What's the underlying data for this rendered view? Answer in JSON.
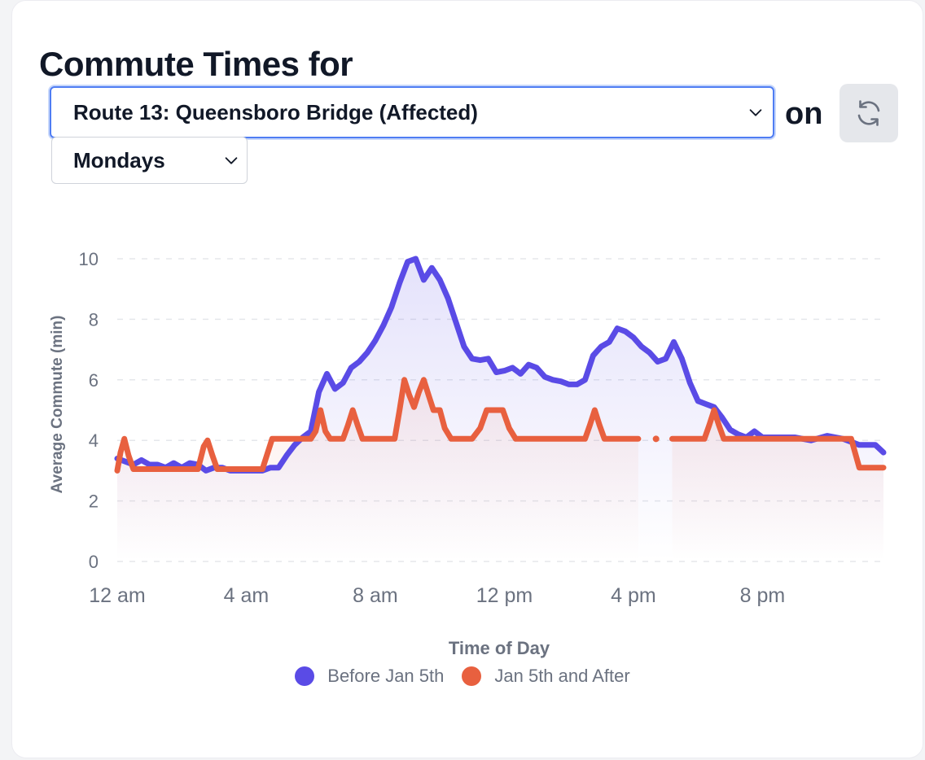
{
  "header": {
    "title": "Commute Times for",
    "route_selected": "Route 13: Queensboro Bridge (Affected)",
    "connector": "on",
    "day_selected": "Mondays",
    "refresh_icon": "refresh-icon"
  },
  "colors": {
    "before": "#5a4be6",
    "after": "#e8603f",
    "focus": "#4f7df3",
    "text": "#111827",
    "muted": "#6b7280"
  },
  "chart_data": {
    "type": "line",
    "title": "",
    "xlabel": "Time of Day",
    "ylabel": "Average Commute (min)",
    "xlim": [
      0,
      23.75
    ],
    "ylim": [
      0,
      10
    ],
    "yticks": [
      0,
      2,
      4,
      6,
      8,
      10
    ],
    "xticks": [
      {
        "value": 0,
        "label": "12 am"
      },
      {
        "value": 4,
        "label": "4 am"
      },
      {
        "value": 8,
        "label": "8 am"
      },
      {
        "value": 12,
        "label": "12 pm"
      },
      {
        "value": 16,
        "label": "4 pm"
      },
      {
        "value": 20,
        "label": "8 pm"
      }
    ],
    "grid": true,
    "legend_position": "bottom-center",
    "series": [
      {
        "name": "Before Jan 5th",
        "color": "#5a4be6",
        "points": [
          [
            0,
            3.4
          ],
          [
            0.25,
            3.3
          ],
          [
            0.5,
            3.2
          ],
          [
            0.75,
            3.35
          ],
          [
            1.0,
            3.2
          ],
          [
            1.25,
            3.2
          ],
          [
            1.5,
            3.1
          ],
          [
            1.75,
            3.25
          ],
          [
            2.0,
            3.1
          ],
          [
            2.25,
            3.25
          ],
          [
            2.5,
            3.2
          ],
          [
            2.75,
            3.0
          ],
          [
            3.0,
            3.1
          ],
          [
            3.25,
            3.1
          ],
          [
            3.5,
            3.0
          ],
          [
            4.0,
            3.0
          ],
          [
            4.5,
            3.0
          ],
          [
            4.75,
            3.1
          ],
          [
            5.0,
            3.1
          ],
          [
            5.25,
            3.5
          ],
          [
            5.5,
            3.85
          ],
          [
            5.75,
            4.1
          ],
          [
            6.0,
            4.3
          ],
          [
            6.25,
            5.6
          ],
          [
            6.5,
            6.2
          ],
          [
            6.75,
            5.7
          ],
          [
            7.0,
            5.9
          ],
          [
            7.25,
            6.4
          ],
          [
            7.5,
            6.6
          ],
          [
            7.75,
            6.9
          ],
          [
            8.0,
            7.3
          ],
          [
            8.25,
            7.8
          ],
          [
            8.5,
            8.4
          ],
          [
            8.75,
            9.2
          ],
          [
            9.0,
            9.9
          ],
          [
            9.25,
            10.0
          ],
          [
            9.5,
            9.3
          ],
          [
            9.75,
            9.7
          ],
          [
            10.0,
            9.3
          ],
          [
            10.25,
            8.7
          ],
          [
            10.5,
            7.9
          ],
          [
            10.75,
            7.1
          ],
          [
            11.0,
            6.7
          ],
          [
            11.25,
            6.65
          ],
          [
            11.5,
            6.7
          ],
          [
            11.75,
            6.25
          ],
          [
            12.0,
            6.3
          ],
          [
            12.25,
            6.4
          ],
          [
            12.5,
            6.2
          ],
          [
            12.75,
            6.5
          ],
          [
            13.0,
            6.4
          ],
          [
            13.25,
            6.1
          ],
          [
            13.5,
            6.0
          ],
          [
            13.75,
            5.95
          ],
          [
            14.0,
            5.85
          ],
          [
            14.25,
            5.85
          ],
          [
            14.5,
            6.0
          ],
          [
            14.75,
            6.8
          ],
          [
            15.0,
            7.1
          ],
          [
            15.25,
            7.25
          ],
          [
            15.5,
            7.7
          ],
          [
            15.75,
            7.6
          ],
          [
            16.0,
            7.4
          ],
          [
            16.25,
            7.1
          ],
          [
            16.5,
            6.9
          ],
          [
            16.75,
            6.6
          ],
          [
            17.0,
            6.7
          ],
          [
            17.25,
            7.25
          ],
          [
            17.5,
            6.7
          ],
          [
            17.75,
            5.9
          ],
          [
            18.0,
            5.3
          ],
          [
            18.25,
            5.2
          ],
          [
            18.5,
            5.1
          ],
          [
            18.75,
            4.75
          ],
          [
            19.0,
            4.35
          ],
          [
            19.25,
            4.2
          ],
          [
            19.5,
            4.1
          ],
          [
            19.75,
            4.3
          ],
          [
            20.0,
            4.1
          ],
          [
            20.5,
            4.1
          ],
          [
            21.0,
            4.1
          ],
          [
            21.5,
            4.0
          ],
          [
            22.0,
            4.15
          ],
          [
            22.5,
            4.05
          ],
          [
            23.0,
            3.85
          ],
          [
            23.5,
            3.85
          ],
          [
            23.75,
            3.6
          ]
        ]
      },
      {
        "name": "Jan 5th and After",
        "color": "#e8603f",
        "segments": [
          [
            [
              0,
              3.0
            ],
            [
              0.1,
              3.6
            ],
            [
              0.22,
              4.05
            ],
            [
              0.35,
              3.5
            ],
            [
              0.5,
              3.05
            ],
            [
              2.5,
              3.05
            ],
            [
              2.68,
              3.8
            ],
            [
              2.8,
              4.0
            ],
            [
              2.95,
              3.5
            ],
            [
              3.1,
              3.05
            ],
            [
              4.5,
              3.05
            ],
            [
              4.8,
              4.05
            ],
            [
              6.0,
              4.05
            ],
            [
              6.15,
              4.3
            ],
            [
              6.3,
              5.0
            ],
            [
              6.45,
              4.3
            ],
            [
              6.6,
              4.05
            ],
            [
              7.0,
              4.05
            ],
            [
              7.15,
              4.5
            ],
            [
              7.3,
              5.0
            ],
            [
              7.45,
              4.5
            ],
            [
              7.6,
              4.05
            ],
            [
              8.6,
              4.05
            ],
            [
              8.75,
              5.0
            ],
            [
              8.9,
              6.0
            ],
            [
              9.05,
              5.5
            ],
            [
              9.2,
              5.1
            ],
            [
              9.35,
              5.6
            ],
            [
              9.5,
              6.0
            ],
            [
              9.65,
              5.5
            ],
            [
              9.8,
              5.0
            ],
            [
              10.0,
              5.0
            ],
            [
              10.15,
              4.4
            ],
            [
              10.35,
              4.05
            ],
            [
              11.0,
              4.05
            ],
            [
              11.25,
              4.4
            ],
            [
              11.45,
              5.0
            ],
            [
              11.95,
              5.0
            ],
            [
              12.15,
              4.4
            ],
            [
              12.35,
              4.05
            ],
            [
              14.5,
              4.05
            ],
            [
              14.65,
              4.5
            ],
            [
              14.8,
              5.0
            ],
            [
              14.95,
              4.5
            ],
            [
              15.1,
              4.05
            ],
            [
              16.15,
              4.05
            ]
          ],
          [
            [
              16.7,
              4.05
            ]
          ],
          [
            [
              17.2,
              4.05
            ],
            [
              18.2,
              4.05
            ],
            [
              18.35,
              4.5
            ],
            [
              18.5,
              5.0
            ],
            [
              18.65,
              4.5
            ],
            [
              18.8,
              4.05
            ],
            [
              22.75,
              4.05
            ],
            [
              23.0,
              3.1
            ],
            [
              23.75,
              3.1
            ]
          ]
        ]
      }
    ]
  }
}
